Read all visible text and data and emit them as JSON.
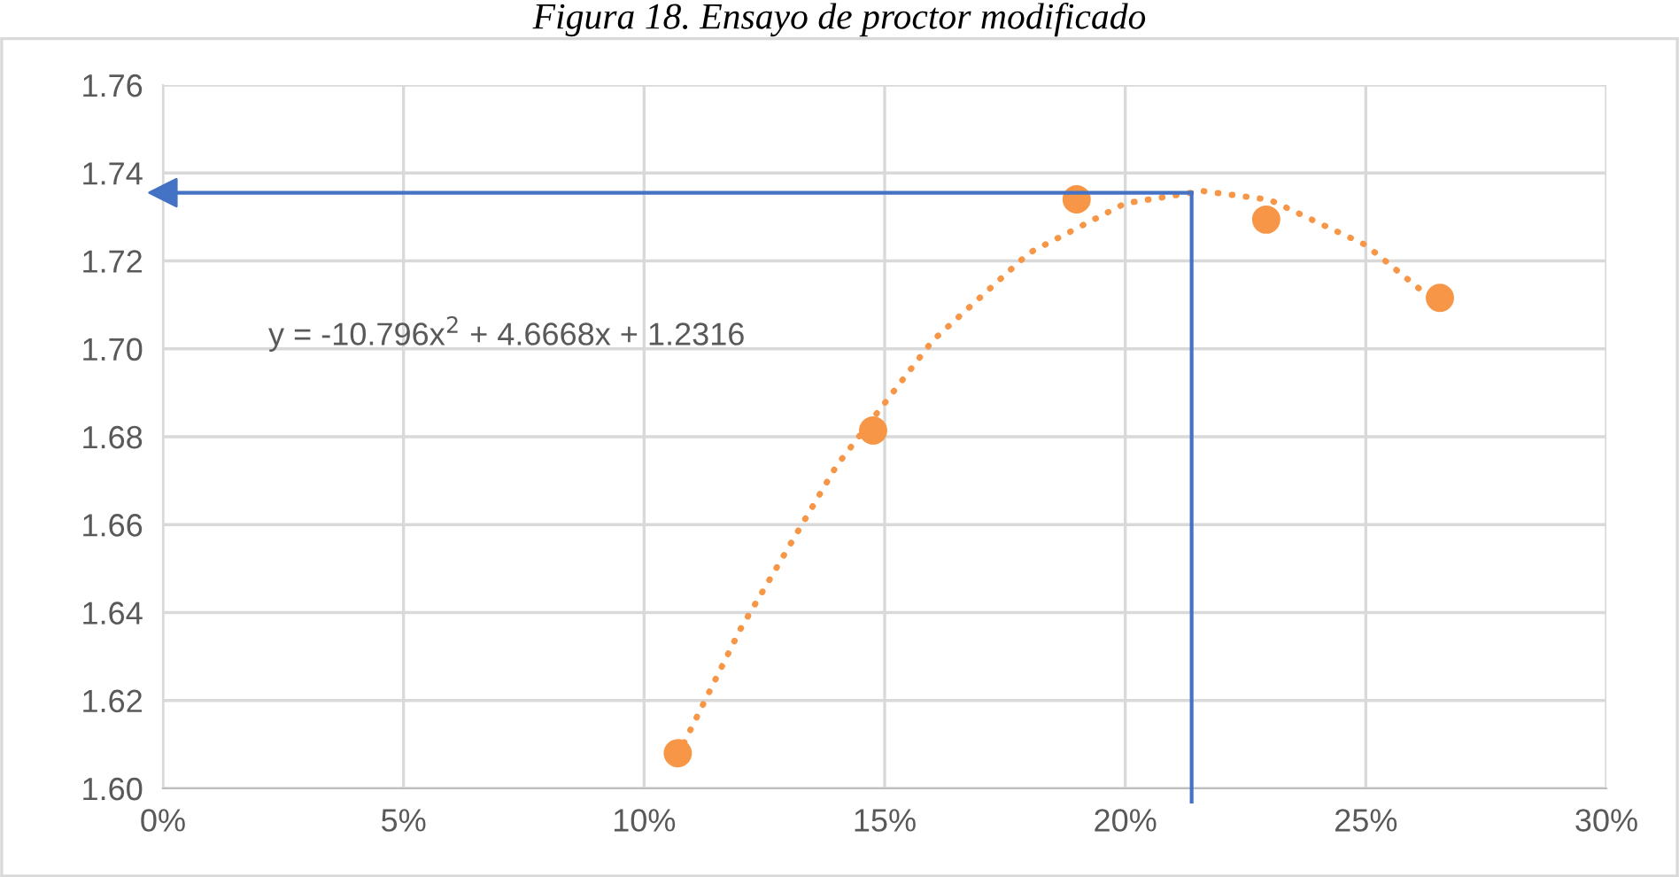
{
  "chart_data": {
    "type": "scatter",
    "title": "Figura 18. Ensayo de proctor modificado",
    "xlim": [
      0,
      0.3
    ],
    "xticks": [
      {
        "value": 0,
        "label": "0%"
      },
      {
        "value": 0.05,
        "label": "5%"
      },
      {
        "value": 0.1,
        "label": "10%"
      },
      {
        "value": 0.15,
        "label": "15%"
      },
      {
        "value": 0.2,
        "label": "20%"
      },
      {
        "value": 0.25,
        "label": "25%"
      },
      {
        "value": 0.3,
        "label": "30%"
      }
    ],
    "ylim": [
      1.6,
      1.76
    ],
    "yticks": [
      {
        "value": 1.6,
        "label": "1.60"
      },
      {
        "value": 1.62,
        "label": "1.62"
      },
      {
        "value": 1.64,
        "label": "1.64"
      },
      {
        "value": 1.66,
        "label": "1.66"
      },
      {
        "value": 1.68,
        "label": "1.68"
      },
      {
        "value": 1.7,
        "label": "1.70"
      },
      {
        "value": 1.72,
        "label": "1.72"
      },
      {
        "value": 1.74,
        "label": "1.74"
      },
      {
        "value": 1.76,
        "label": "1.76"
      }
    ],
    "grid": true,
    "legend": false,
    "series": [
      {
        "type": "scatter",
        "marker": "circle",
        "color": "#f79646",
        "x": [
          0.107,
          0.1476,
          0.1899,
          0.2293,
          0.2654
        ],
        "values": [
          1.608,
          1.6814,
          1.734,
          1.7294,
          1.7116
        ]
      },
      {
        "type": "line",
        "line_style": "dotted",
        "marker": "none",
        "color": "#f79646",
        "x": [
          0.107,
          0.12,
          0.14,
          0.16,
          0.18,
          0.2,
          0.216,
          0.23,
          0.25,
          0.265
        ],
        "values": [
          1.6075,
          1.6362,
          1.6734,
          1.7019,
          1.7218,
          1.7331,
          1.7359,
          1.7339,
          1.7236,
          1.7102
        ]
      }
    ],
    "ref_lines": [
      {
        "axis": "x",
        "value": 0.2138,
        "color": "#4472c4",
        "line_style": "solid"
      },
      {
        "axis": "y",
        "value": 1.7355,
        "color": "#4472c4",
        "line_style": "solid"
      }
    ],
    "annotations": [
      "y = -10.796x$^{2}$ + 4.6668x + 1.2316"
    ]
  }
}
